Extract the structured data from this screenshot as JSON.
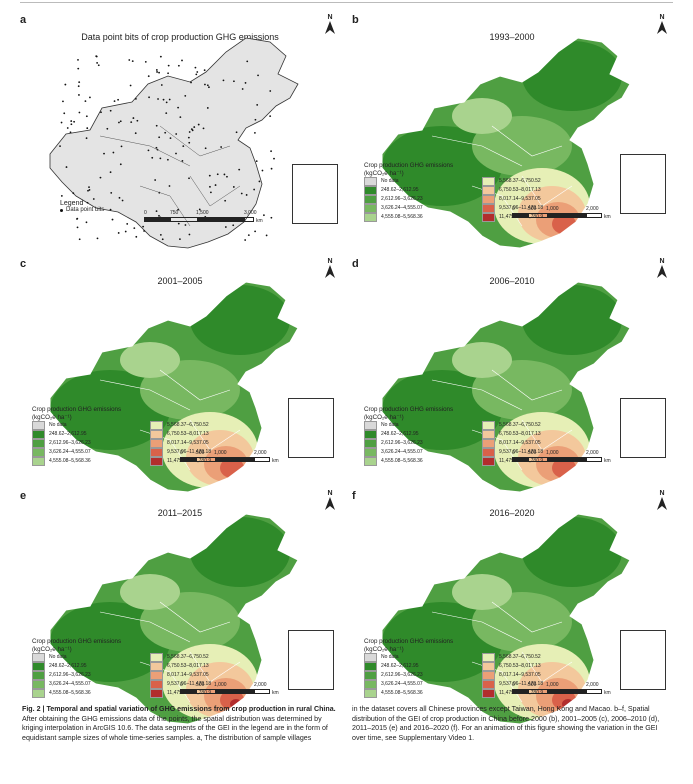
{
  "panels": [
    {
      "label": "a",
      "title": "Data point bits of crop production GHG emissions"
    },
    {
      "label": "b",
      "title": "1993–2000"
    },
    {
      "label": "c",
      "title": "2001–2005"
    },
    {
      "label": "d",
      "title": "2006–2010"
    },
    {
      "label": "e",
      "title": "2011–2015"
    },
    {
      "label": "f",
      "title": "2016–2020"
    }
  ],
  "north_label": "N",
  "scale": {
    "ticks": [
      "0",
      "750",
      "1,500",
      "3,000"
    ],
    "ticks2": [
      "0",
      "500",
      "1,000",
      "2,000"
    ],
    "unit": "km"
  },
  "legend_a": {
    "title": "Legend",
    "item": "Data point bits"
  },
  "legend": {
    "title_line1": "Crop production GHG emissions",
    "title_line2": "(kgCO₂e ha⁻¹)",
    "left": [
      {
        "label": "No data",
        "color": "#d9d9d9"
      },
      {
        "label": "248.62–2,612.95",
        "color": "#2f8a2a"
      },
      {
        "label": "2,612.96–3,626.23",
        "color": "#4f9f42"
      },
      {
        "label": "3,626.24–4,555.07",
        "color": "#78b861"
      },
      {
        "label": "4,555.08–5,568.36",
        "color": "#a9d38e"
      }
    ],
    "right": [
      {
        "label": "5,568.37–6,750.52",
        "color": "#e6efb6"
      },
      {
        "label": "6,750.53–8,017.13",
        "color": "#f3c89c"
      },
      {
        "label": "8,017.14–9,537.05",
        "color": "#eb9f77"
      },
      {
        "label": "9,537.06–11,479.18",
        "color": "#d9614a"
      },
      {
        "label": "11,479.19–21,780.9",
        "color": "#b22d2d"
      }
    ]
  },
  "caption": {
    "fig": "Fig. 2 | Temporal and spatial variation of GHG emissions from crop production in rural China.",
    "left_rest": "After obtaining the GHG emissions data of the points, the spatial distribution was determined by kriging interpolation in ArcGIS 10.6. The data segments of the GEI in the legend are in the form of equidistant sample sizes of whole time-series samples. a, The distribution of sample villages",
    "right": "in the dataset covers all Chinese provinces except Taiwan, Hong Kong and Macao. b–f, Spatial distribution of the GEI of crop production in China before 2000 (b), 2001–2005 (c), 2006–2010 (d), 2011–2015 (e) and 2016–2020 (f). For an animation of this figure showing the variation in the GEI over time, see Supplementary Video 1."
  }
}
